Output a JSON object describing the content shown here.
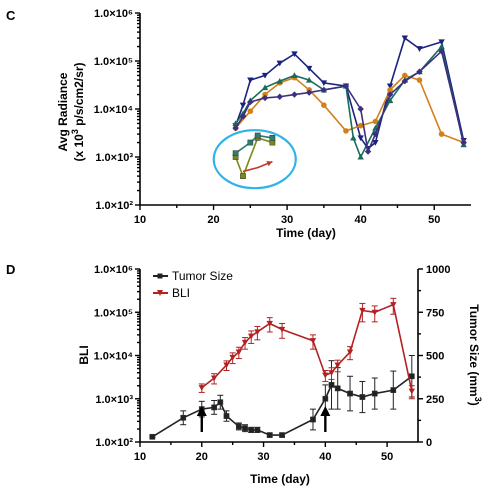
{
  "chart_data": [
    {
      "panel": "C",
      "type": "line",
      "xlabel": "Time (day)",
      "ylabel_line1": "Avg Radiance",
      "ylabel_line2": "(x 10",
      "ylabel_sup": "3",
      "ylabel_line2_rest": " p/s/cm2/sr)",
      "xlim": [
        10,
        55
      ],
      "ylim": [
        100,
        1000000
      ],
      "yscale": "log",
      "xticks": [
        10,
        20,
        30,
        40,
        50
      ],
      "yticks": [
        100,
        1000,
        10000,
        100000,
        1000000
      ],
      "ytick_labels": [
        "1.0×10²",
        "1.0×10³",
        "1.0×10⁴",
        "1.0×10⁵",
        "1.0×10⁶"
      ],
      "annotation": "circled low-signal group",
      "series": [
        {
          "color": "#1a237e",
          "marker": "triangle-down",
          "x": [
            23,
            24,
            25,
            27,
            29,
            31,
            33,
            35,
            38,
            40,
            41,
            42,
            44,
            46,
            48,
            51,
            54
          ],
          "y": [
            4500,
            12000,
            40000,
            50000,
            90000,
            140000,
            70000,
            35000,
            30000,
            2500,
            1500,
            2000,
            30000,
            300000,
            180000,
            250000,
            2200
          ]
        },
        {
          "color": "#d4801a",
          "marker": "circle",
          "x": [
            23,
            25,
            27,
            29,
            31,
            33,
            35,
            38,
            40,
            42,
            44,
            46,
            48,
            51,
            54
          ],
          "y": [
            4000,
            9000,
            20000,
            35000,
            45000,
            25000,
            12000,
            3500,
            4500,
            5500,
            25000,
            50000,
            40000,
            3000,
            2000
          ]
        },
        {
          "color": "#1b6b5a",
          "marker": "triangle-up",
          "x": [
            23,
            24,
            25,
            27,
            29,
            31,
            33,
            35,
            38,
            39,
            40,
            42,
            44,
            46,
            48,
            51,
            54
          ],
          "y": [
            5000,
            8000,
            15000,
            28000,
            38000,
            50000,
            40000,
            25000,
            30000,
            2500,
            1000,
            4000,
            15000,
            40000,
            60000,
            200000,
            1800
          ]
        },
        {
          "color": "#3c2f80",
          "marker": "diamond",
          "x": [
            23,
            24,
            25,
            27,
            29,
            31,
            33,
            35,
            38,
            40,
            41,
            42,
            44,
            46,
            48,
            51,
            54
          ],
          "y": [
            4000,
            7000,
            14000,
            17000,
            18000,
            20000,
            22000,
            25000,
            30000,
            10000,
            1300,
            3000,
            20000,
            38000,
            60000,
            160000,
            2000
          ]
        },
        {
          "color": "#7a8a1a",
          "marker": "square",
          "x": [
            23,
            24,
            26,
            28
          ],
          "y": [
            1000,
            400,
            2500,
            2000
          ]
        },
        {
          "color": "#2e7d6e",
          "marker": "square",
          "x": [
            23,
            25,
            26,
            28
          ],
          "y": [
            1200,
            2000,
            2800,
            2500
          ]
        },
        {
          "color": "#c0392b",
          "marker": "none",
          "x": [
            24,
            26,
            28
          ],
          "y": [
            500,
            600,
            800
          ]
        }
      ]
    },
    {
      "panel": "D",
      "type": "line",
      "xlabel": "Time (day)",
      "ylabel_left": "BLI",
      "ylabel_right": "Tumor Size (mm",
      "ylabel_right_sup": "3",
      "ylabel_right_end": ")",
      "xlim": [
        10,
        55
      ],
      "ylim_left": [
        100,
        1000000
      ],
      "yscale_left": "log",
      "ylim_right": [
        0,
        1000
      ],
      "xticks": [
        10,
        20,
        30,
        40,
        50
      ],
      "yticks_left": [
        100,
        1000,
        10000,
        100000,
        1000000
      ],
      "ytick_labels_left": [
        "1.0×10²",
        "1.0×10³",
        "1.0×10⁴",
        "1.0×10⁵",
        "1.0×10⁶"
      ],
      "yticks_right": [
        0,
        250,
        500,
        750,
        1000
      ],
      "legend": [
        "Tumor Size",
        "BLI"
      ],
      "legend_position": "top-left",
      "arrows_at_x": [
        20,
        40
      ],
      "series": [
        {
          "name": "Tumor Size",
          "color": "#222222",
          "marker": "square",
          "axis": "right",
          "x": [
            12,
            17,
            20,
            22,
            23,
            24,
            26,
            27,
            28,
            29,
            31,
            33,
            38,
            40,
            41,
            42,
            44,
            46,
            48,
            51,
            54
          ],
          "y": [
            30,
            140,
            190,
            200,
            230,
            150,
            90,
            80,
            70,
            70,
            40,
            40,
            130,
            250,
            330,
            310,
            280,
            260,
            280,
            300,
            380
          ],
          "err": [
            5,
            40,
            45,
            40,
            40,
            30,
            20,
            20,
            15,
            15,
            10,
            10,
            60,
            80,
            140,
            120,
            100,
            90,
            90,
            110,
            120
          ]
        },
        {
          "name": "BLI",
          "color": "#b22222",
          "marker": "triangle-down",
          "axis": "left",
          "x": [
            20,
            22,
            24,
            25,
            26,
            27,
            28,
            29,
            31,
            33,
            38,
            40,
            41,
            42,
            44,
            46,
            48,
            51,
            54
          ],
          "y": [
            1800,
            3000,
            6000,
            9000,
            12000,
            20000,
            28000,
            35000,
            55000,
            40000,
            22000,
            3500,
            4000,
            6000,
            12000,
            110000,
            100000,
            150000,
            1500
          ],
          "err": [
            400,
            800,
            1500,
            2500,
            3500,
            6000,
            9000,
            12000,
            20000,
            15000,
            8000,
            1000,
            1200,
            1800,
            4000,
            50000,
            40000,
            60000,
            500
          ]
        }
      ]
    }
  ],
  "labels": {
    "panel_c": "C",
    "panel_d": "D"
  }
}
